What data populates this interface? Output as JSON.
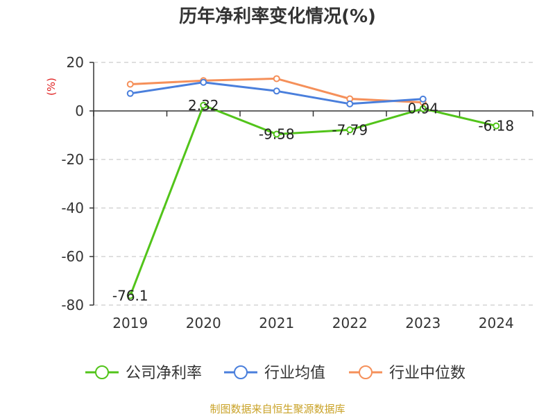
{
  "chart_data": {
    "type": "line",
    "title": "历年净利率变化情况(%)",
    "ylabel": "(%)",
    "categories": [
      "2019",
      "2020",
      "2021",
      "2022",
      "2023",
      "2024"
    ],
    "ylim": [
      -80,
      20
    ],
    "yticks": [
      20,
      0,
      -20,
      -40,
      -60,
      -80
    ],
    "grid": true,
    "legend_position": "bottom",
    "series": [
      {
        "name": "公司净利率",
        "color": "#52c41a",
        "values": [
          -76.1,
          2.32,
          -9.58,
          -7.79,
          0.94,
          -6.18
        ],
        "labels": [
          "-76.1",
          "2.32",
          "-9.58",
          "-7.79",
          "0.94",
          "-6.18"
        ]
      },
      {
        "name": "行业均值",
        "color": "#4a7fdc",
        "values": [
          7.2,
          11.8,
          8.2,
          2.9,
          4.9,
          null
        ]
      },
      {
        "name": "行业中位数",
        "color": "#f5905a",
        "values": [
          11.0,
          12.5,
          13.3,
          5.0,
          3.5,
          null
        ]
      }
    ]
  },
  "colors": {
    "ylabel": "#e02020",
    "footer": "#c9a227",
    "grid": "#cccccc",
    "axis": "#333333"
  },
  "footer": "制图数据来自恒生聚源数据库"
}
